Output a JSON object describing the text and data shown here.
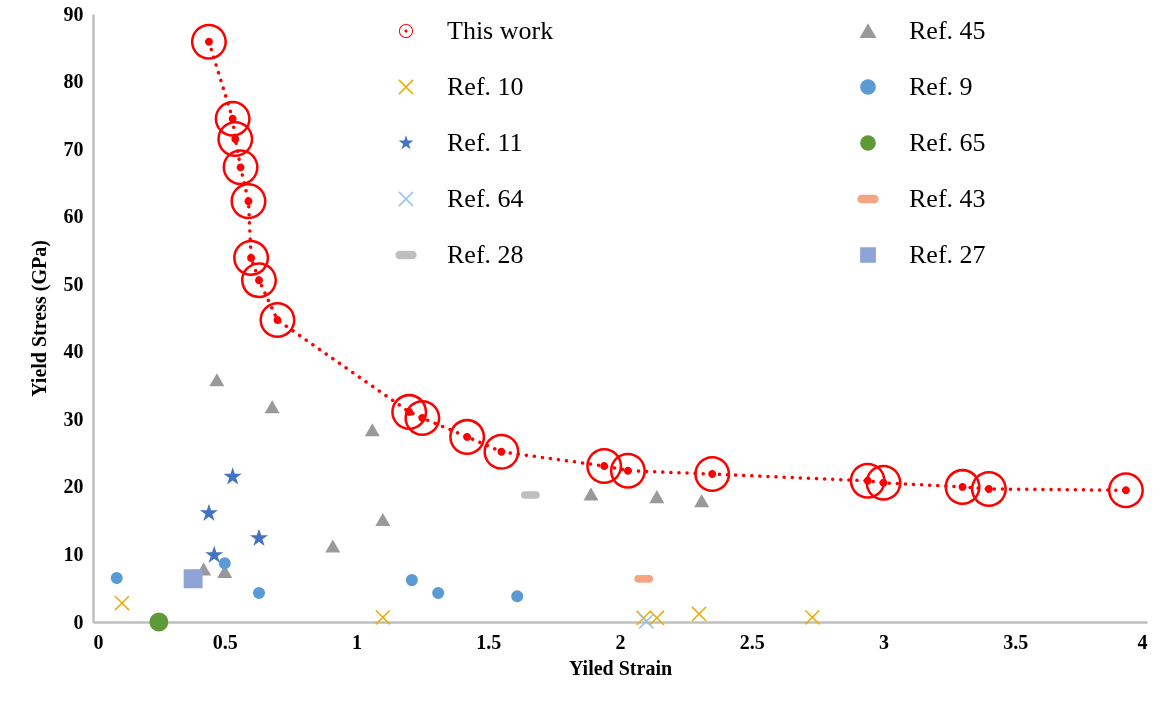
{
  "chart_data": {
    "type": "scatter",
    "xlabel": "Yiled Strain",
    "ylabel": "Yield Stress (GPa)",
    "xlim": [
      0,
      4
    ],
    "xticks": [
      0,
      0.5,
      1,
      1.5,
      2,
      2.5,
      3,
      3.5,
      4
    ],
    "ylim": [
      0,
      90
    ],
    "yticks": [
      0,
      10,
      20,
      30,
      40,
      50,
      60,
      70,
      80,
      90
    ],
    "grid": false,
    "legend": "top",
    "series": [
      {
        "name": "This work",
        "type": "line",
        "color": "#ff0000",
        "marker": "circle",
        "line_style": "dotted",
        "x": [
          0.44,
          0.53,
          0.54,
          0.56,
          0.59,
          0.6,
          0.63,
          0.7,
          1.2,
          1.25,
          1.42,
          1.55,
          1.94,
          2.03,
          2.35,
          2.94,
          3.0,
          3.3,
          3.4,
          3.92
        ],
        "values": [
          85.9,
          74.5,
          71.5,
          67.3,
          62.3,
          53.9,
          50.6,
          44.7,
          31.1,
          30.2,
          27.4,
          25.2,
          23.1,
          22.4,
          21.9,
          20.9,
          20.6,
          20.0,
          19.7,
          19.5
        ]
      },
      {
        "name": "Ref. 10",
        "color": "#e6b010",
        "marker": "cross",
        "x": [
          0.11,
          1.1,
          2.09,
          2.14,
          2.3,
          2.73
        ],
        "values": [
          2.8,
          0.7,
          0.6,
          0.6,
          1.2,
          0.7
        ]
      },
      {
        "name": "Ref. 11",
        "color": "#4472c4",
        "marker": "star",
        "x": [
          0.53,
          0.44,
          0.63,
          0.46
        ],
        "values": [
          21.5,
          16.1,
          12.4,
          9.9
        ]
      },
      {
        "name": "Ref. 64",
        "color": "#9dc3e6",
        "marker": "cross",
        "x": [
          2.1
        ],
        "values": [
          0.1
        ]
      },
      {
        "name": "Ref. 28",
        "color": "#bfbfbf",
        "x": [
          1.66
        ],
        "values": [
          18.8
        ]
      },
      {
        "name": "Ref. 45",
        "color": "#999999",
        "marker": "triangle",
        "x": [
          0.47,
          0.68,
          1.06,
          0.91,
          1.1,
          0.42,
          0.5,
          1.89,
          2.14,
          2.31
        ],
        "values": [
          35.8,
          31.8,
          28.4,
          11.2,
          15.1,
          7.8,
          7.4,
          18.9,
          18.5,
          17.9
        ]
      },
      {
        "name": "Ref. 9",
        "color": "#5b9bd5",
        "marker": "circle",
        "x": [
          0.09,
          0.5,
          0.63,
          1.21,
          1.31,
          1.61
        ],
        "values": [
          6.5,
          8.7,
          4.3,
          6.2,
          4.3,
          3.8
        ]
      },
      {
        "name": "Ref. 65",
        "color": "#5f9a3a",
        "marker": "circle",
        "x": [
          0.25
        ],
        "values": [
          0
        ]
      },
      {
        "name": "Ref. 43",
        "color": "#f4a582",
        "x": [
          2.09
        ],
        "values": [
          6.4
        ]
      },
      {
        "name": "Ref. 27",
        "color": "#8fa3d6",
        "marker": "square",
        "x": [
          0.38
        ],
        "values": [
          6.4
        ]
      }
    ]
  }
}
